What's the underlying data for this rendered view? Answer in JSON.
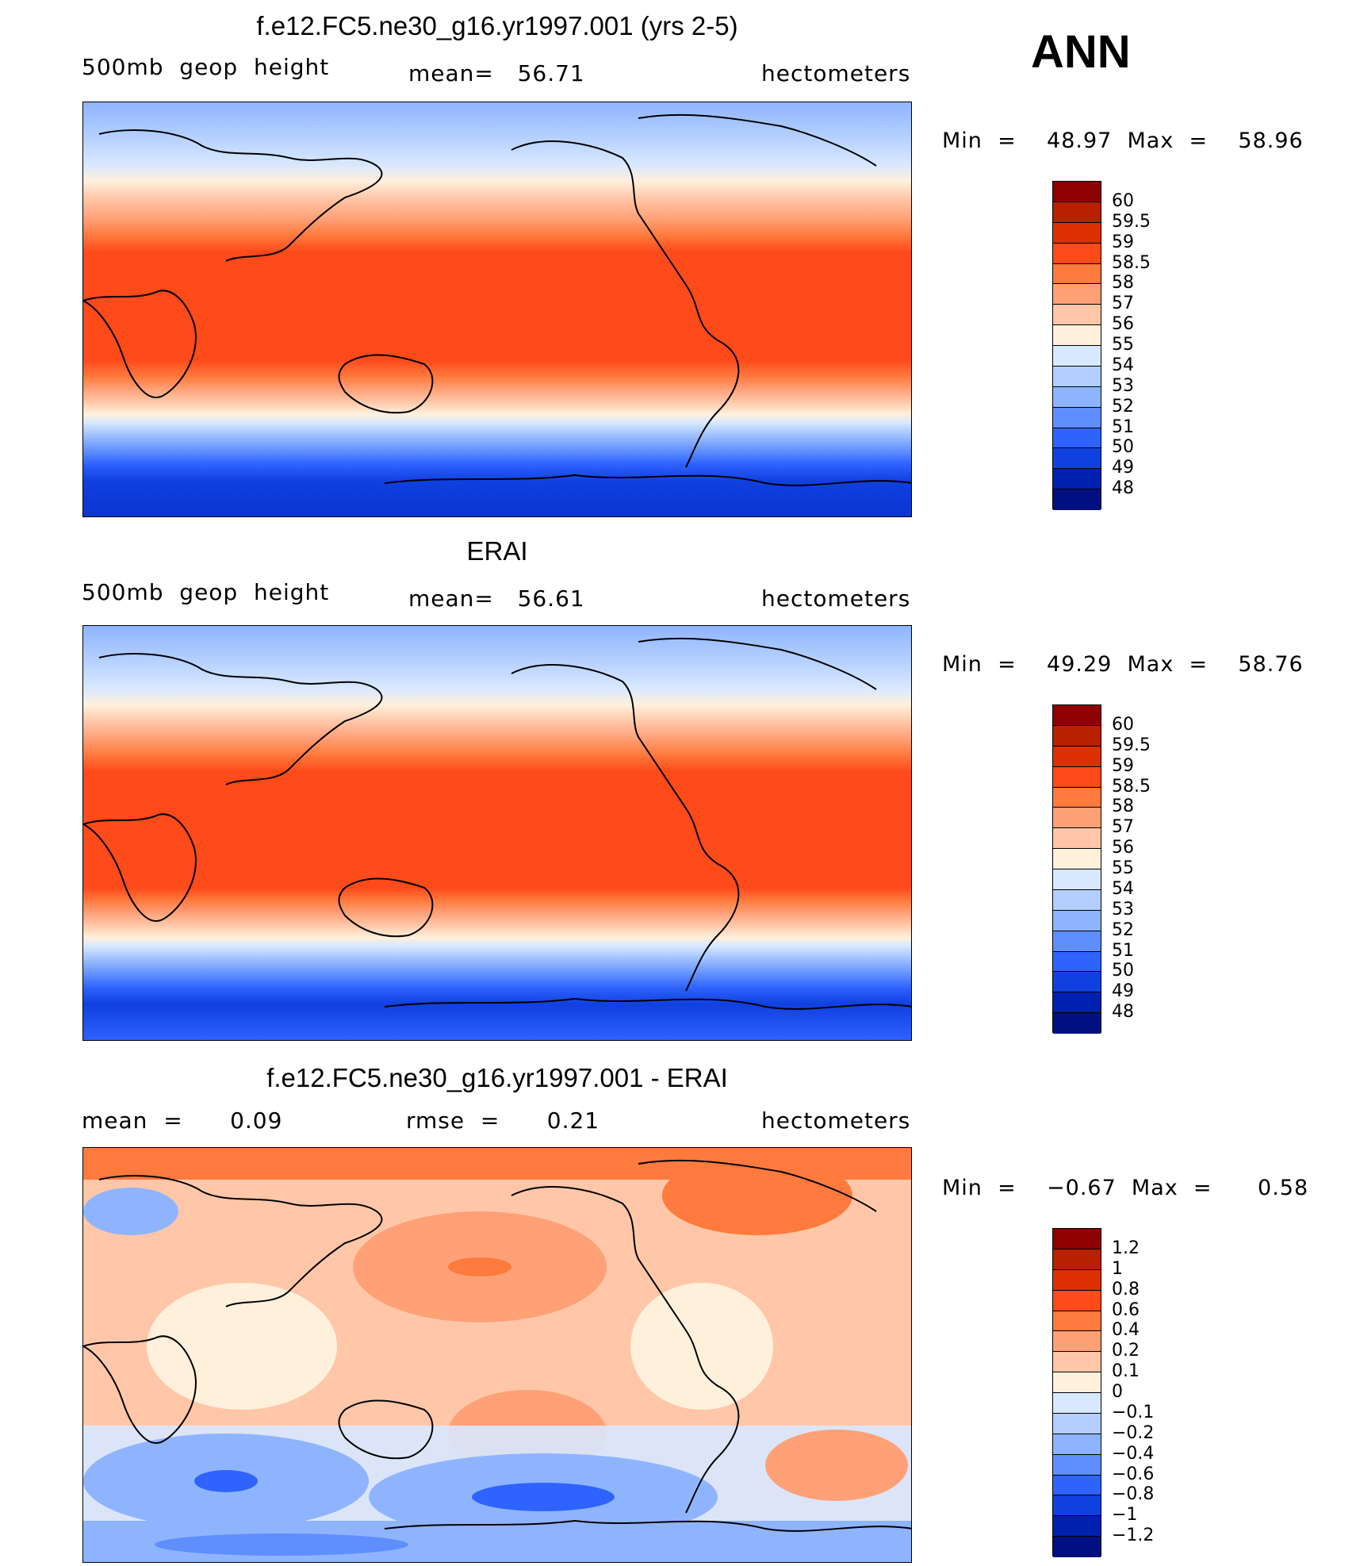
{
  "season": "ANN",
  "panels": [
    {
      "title": "f.e12.FC5.ne30_g16.yr1997.001 (yrs 2-5)",
      "left_label": "500mb  geop  height",
      "center_label": "mean=   56.71",
      "right_label": "hectometers",
      "minmax": "Min  =    48.97  Max  =    58.96",
      "colorbar_labels": [
        "60",
        "59.5",
        "59",
        "58.5",
        "58",
        "57",
        "56",
        "55",
        "54",
        "53",
        "52",
        "51",
        "50",
        "49",
        "48"
      ],
      "colorbar_colors": [
        "#8f0000",
        "#b82000",
        "#dc3000",
        "#ff4a1a",
        "#ff7a3d",
        "#ffa077",
        "#ffc7a8",
        "#fff0dc",
        "#d8e8ff",
        "#b3cfff",
        "#8fb4ff",
        "#5e8eff",
        "#2f63ff",
        "#1040e0",
        "#0020b0",
        "#001080"
      ]
    },
    {
      "title": "ERAI",
      "left_label": "500mb  geop  height",
      "center_label": "mean=   56.61",
      "right_label": "hectometers",
      "minmax": "Min  =    49.29  Max  =    58.76",
      "colorbar_labels": [
        "60",
        "59.5",
        "59",
        "58.5",
        "58",
        "57",
        "56",
        "55",
        "54",
        "53",
        "52",
        "51",
        "50",
        "49",
        "48"
      ],
      "colorbar_colors": [
        "#8f0000",
        "#b82000",
        "#dc3000",
        "#ff4a1a",
        "#ff7a3d",
        "#ffa077",
        "#ffc7a8",
        "#fff0dc",
        "#d8e8ff",
        "#b3cfff",
        "#8fb4ff",
        "#5e8eff",
        "#2f63ff",
        "#1040e0",
        "#0020b0",
        "#001080"
      ]
    },
    {
      "title": "f.e12.FC5.ne30_g16.yr1997.001 - ERAI",
      "left_label": "mean  =      0.09",
      "center_label": "rmse  =      0.21",
      "right_label": "hectometers",
      "minmax": "Min  =    −0.67  Max  =      0.58",
      "colorbar_labels": [
        "1.2",
        "1",
        "0.8",
        "0.6",
        "0.4",
        "0.2",
        "0.1",
        "0",
        "−0.1",
        "−0.2",
        "−0.4",
        "−0.6",
        "−0.8",
        "−1",
        "−1.2"
      ],
      "colorbar_colors": [
        "#8f0000",
        "#b82000",
        "#dc3000",
        "#ff4a1a",
        "#ff7a3d",
        "#ffa077",
        "#ffc7a8",
        "#fff0dc",
        "#d8e8ff",
        "#b3cfff",
        "#8fb4ff",
        "#5e8eff",
        "#2f63ff",
        "#1040e0",
        "#0020b0",
        "#001080"
      ]
    }
  ]
}
